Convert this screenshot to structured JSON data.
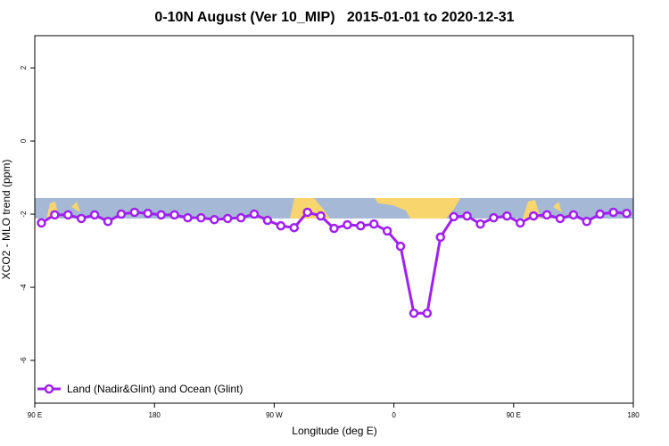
{
  "chart_data": {
    "type": "line",
    "title": "0-10N August (Ver 10_MIP)   2015-01-01 to 2020-12-31",
    "x_label": "Longitude (deg E)",
    "y_label": "XCO2 - MLO trend (ppm)",
    "x": [
      95,
      105,
      115,
      125,
      135,
      145,
      155,
      165,
      175,
      185,
      195,
      205,
      215,
      225,
      235,
      245,
      255,
      265,
      275,
      285,
      295,
      305,
      315,
      325,
      335,
      345,
      355,
      365,
      375,
      385,
      395,
      405,
      415,
      425,
      435,
      445,
      455,
      465,
      475,
      485,
      495,
      505,
      515,
      525,
      535
    ],
    "series": [
      {
        "name": "Land (Nadir&Glint) and Ocean (Glint)",
        "color": "#a020f0",
        "values": [
          -2.24,
          -2.02,
          -2.02,
          -2.12,
          -2.02,
          -2.2,
          -2.0,
          -1.95,
          -1.98,
          -2.02,
          -2.02,
          -2.1,
          -2.1,
          -2.15,
          -2.12,
          -2.1,
          -2.0,
          -2.17,
          -2.32,
          -2.37,
          -1.95,
          -2.05,
          -2.39,
          -2.29,
          -2.32,
          -2.27,
          -2.46,
          -2.88,
          -4.71,
          -4.71,
          -2.63,
          -2.07,
          -2.05,
          -2.27,
          -2.1,
          -2.05,
          -2.24,
          -2.05,
          -2.02,
          -2.12,
          -2.02,
          -2.2,
          -2.0,
          -1.95,
          -1.98
        ]
      }
    ],
    "xlim": [
      90,
      540
    ],
    "xticks": [
      {
        "value": 90,
        "label": "90 E"
      },
      180,
      {
        "value": 270,
        "label": "90 W"
      },
      {
        "value": 360,
        "label": "0"
      },
      {
        "value": 450,
        "label": "90 E"
      },
      {
        "value": 540,
        "label": "180"
      }
    ],
    "ylim": [
      -7.17,
      2.88
    ],
    "yticks": [
      2,
      0,
      -2,
      -4,
      -6
    ],
    "legend": "bottom-left"
  }
}
